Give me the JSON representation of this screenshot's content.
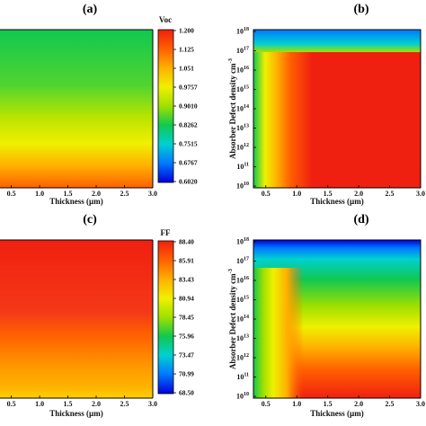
{
  "figure": {
    "panel_labels": [
      "(a)",
      "(b)",
      "(c)",
      "(d)"
    ]
  },
  "palette": [
    "#0000d8",
    "#0078ff",
    "#00d0d0",
    "#10c850",
    "#a0e000",
    "#f0f000",
    "#ffb000",
    "#ff6000",
    "#f02010"
  ],
  "chart_data": [
    {
      "id": "a",
      "type": "heatmap",
      "panel_label": "(a)",
      "xlabel": "Thickness (µm)",
      "ylabel": "",
      "x_ticks": [
        "0.5",
        "1.0",
        "1.5",
        "2.0",
        "2.5",
        "3.0"
      ],
      "y_ticks": [],
      "colorbar": {
        "title": "Voc",
        "min": 0.602,
        "max": 1.2,
        "ticks": [
          "1.200",
          "1.125",
          "1.051",
          "0.9757",
          "0.9010",
          "0.8262",
          "0.7515",
          "0.6767",
          "0.6020"
        ]
      }
    },
    {
      "id": "b",
      "type": "heatmap",
      "panel_label": "(b)",
      "xlabel": "Thickness (µm)",
      "ylabel": "Absorber Defect density cm",
      "ylabel_sup": "-3",
      "x_ticks": [
        "0.5",
        "1.0",
        "1.5",
        "2.0",
        "2.5",
        "3.0"
      ],
      "y_ticks": [
        {
          "base": "10",
          "exp": "18"
        },
        {
          "base": "10",
          "exp": "17"
        },
        {
          "base": "10",
          "exp": "16"
        },
        {
          "base": "10",
          "exp": "15"
        },
        {
          "base": "10",
          "exp": "14"
        },
        {
          "base": "10",
          "exp": "13"
        },
        {
          "base": "10",
          "exp": "12"
        },
        {
          "base": "10",
          "exp": "11"
        },
        {
          "base": "10",
          "exp": "10"
        }
      ],
      "colorbar": null
    },
    {
      "id": "c",
      "type": "heatmap",
      "panel_label": "(c)",
      "xlabel": "Thickness (µm)",
      "ylabel": "",
      "x_ticks": [
        "0.5",
        "1.0",
        "1.5",
        "2.0",
        "2.5",
        "3.0"
      ],
      "y_ticks": [],
      "colorbar": {
        "title": "FF",
        "min": 68.5,
        "max": 88.4,
        "ticks": [
          "88.40",
          "85.91",
          "83.43",
          "80.94",
          "78.45",
          "75.96",
          "73.47",
          "70.99",
          "68.50"
        ]
      }
    },
    {
      "id": "d",
      "type": "heatmap",
      "panel_label": "(d)",
      "xlabel": "Thickness (µm)",
      "ylabel": "Absorber Defect density cm",
      "ylabel_sup": "-3",
      "x_ticks": [
        "0.5",
        "1.0",
        "1.5",
        "2.0",
        "2.5",
        "3.0"
      ],
      "y_ticks": [
        {
          "base": "10",
          "exp": "18"
        },
        {
          "base": "10",
          "exp": "17"
        },
        {
          "base": "10",
          "exp": "16"
        },
        {
          "base": "10",
          "exp": "15"
        },
        {
          "base": "10",
          "exp": "14"
        },
        {
          "base": "10",
          "exp": "13"
        },
        {
          "base": "10",
          "exp": "12"
        },
        {
          "base": "10",
          "exp": "11"
        },
        {
          "base": "10",
          "exp": "10"
        }
      ],
      "colorbar": null
    }
  ]
}
